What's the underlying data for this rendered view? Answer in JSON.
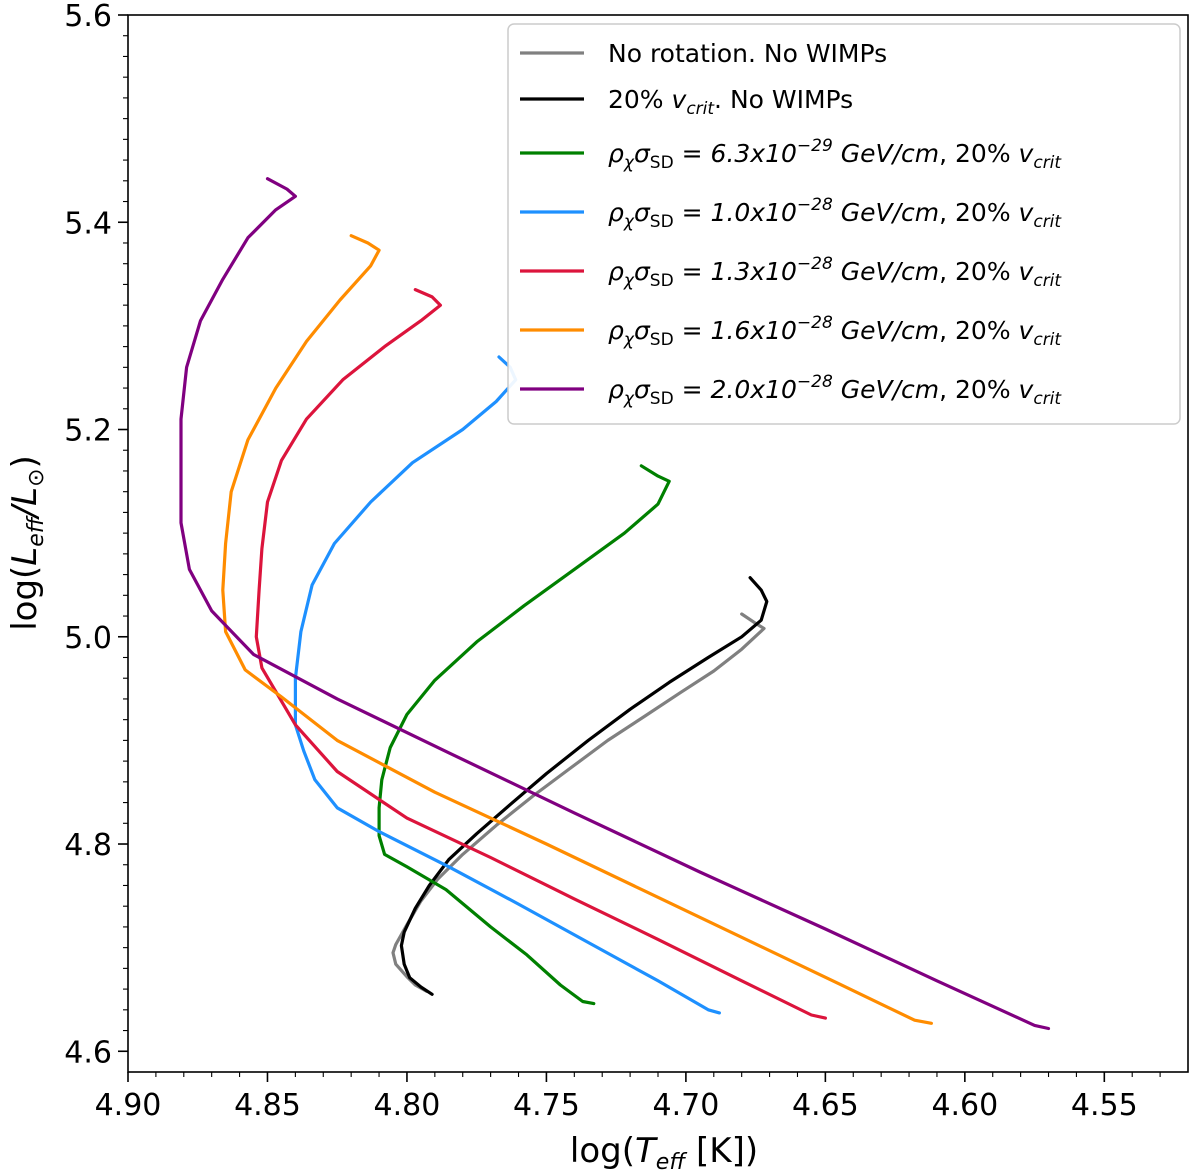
{
  "chart_data": {
    "type": "line",
    "xlabel_parts": {
      "pre": "log(",
      "sym": "T",
      "sub": "eff",
      "post": " [K])"
    },
    "ylabel_parts": {
      "pre": "log(",
      "sym1": "L",
      "sub1": "eff",
      "slash": "/",
      "sym2": "L",
      "sub2": "⊙",
      "post": ")"
    },
    "xlim": [
      4.9,
      4.52
    ],
    "ylim": [
      4.58,
      5.6
    ],
    "x_ticks": [
      {
        "value": 4.9,
        "label": "4.90"
      },
      {
        "value": 4.85,
        "label": "4.85"
      },
      {
        "value": 4.8,
        "label": "4.80"
      },
      {
        "value": 4.75,
        "label": "4.75"
      },
      {
        "value": 4.7,
        "label": "4.70"
      },
      {
        "value": 4.65,
        "label": "4.65"
      },
      {
        "value": 4.6,
        "label": "4.60"
      },
      {
        "value": 4.55,
        "label": "4.55"
      }
    ],
    "y_ticks": [
      {
        "value": 4.6,
        "label": "4.6"
      },
      {
        "value": 4.8,
        "label": "4.8"
      },
      {
        "value": 5.0,
        "label": "5.0"
      },
      {
        "value": 5.2,
        "label": "5.2"
      },
      {
        "value": 5.4,
        "label": "5.4"
      },
      {
        "value": 5.6,
        "label": "5.6"
      }
    ],
    "legend_position": "top-right",
    "series": [
      {
        "name": "No rotation. No WIMPs",
        "legend_parts": {
          "plain": "No rotation. No WIMPs"
        },
        "color": "#808080",
        "points": [
          [
            4.793,
            4.658
          ],
          [
            4.797,
            4.664
          ],
          [
            4.8,
            4.672
          ],
          [
            4.804,
            4.684
          ],
          [
            4.805,
            4.695
          ],
          [
            4.804,
            4.703
          ],
          [
            4.8,
            4.722
          ],
          [
            4.795,
            4.745
          ],
          [
            4.789,
            4.766
          ],
          [
            4.78,
            4.79
          ],
          [
            4.768,
            4.818
          ],
          [
            4.755,
            4.846
          ],
          [
            4.742,
            4.872
          ],
          [
            4.728,
            4.9
          ],
          [
            4.715,
            4.923
          ],
          [
            4.702,
            4.946
          ],
          [
            4.69,
            4.967
          ],
          [
            4.68,
            4.988
          ],
          [
            4.672,
            5.008
          ],
          [
            4.675,
            5.013
          ],
          [
            4.68,
            5.022
          ]
        ]
      },
      {
        "name": "20% v_crit. No WIMPs",
        "legend_parts": {
          "pre": "20% ",
          "sym": "v",
          "sub": "crit",
          "post": ". No WIMPs"
        },
        "color": "#000000",
        "points": [
          [
            4.791,
            4.655
          ],
          [
            4.795,
            4.662
          ],
          [
            4.799,
            4.671
          ],
          [
            4.801,
            4.684
          ],
          [
            4.802,
            4.702
          ],
          [
            4.801,
            4.715
          ],
          [
            4.797,
            4.738
          ],
          [
            4.792,
            4.76
          ],
          [
            4.785,
            4.785
          ],
          [
            4.775,
            4.81
          ],
          [
            4.763,
            4.838
          ],
          [
            4.75,
            4.868
          ],
          [
            4.735,
            4.9
          ],
          [
            4.72,
            4.93
          ],
          [
            4.706,
            4.956
          ],
          [
            4.692,
            4.98
          ],
          [
            4.68,
            5.0
          ],
          [
            4.673,
            5.016
          ],
          [
            4.671,
            5.034
          ],
          [
            4.673,
            5.045
          ],
          [
            4.677,
            5.057
          ]
        ]
      },
      {
        "name": "ρχσSD = 6.3x10^-29 GeV/cm, 20% v_crit",
        "legend_parts": {
          "rho": "ρ",
          "rho_sub": "χ",
          "sigma": "σ",
          "sigma_sub": "SD",
          "eq": " = ",
          "mant": "6.3x10",
          "exp": "−29",
          "unit": " GeV/cm",
          "sep": ", 20% ",
          "v": "v",
          "v_sub": "crit"
        },
        "color": "#008000",
        "points": [
          [
            4.733,
            4.646
          ],
          [
            4.737,
            4.648
          ],
          [
            4.745,
            4.664
          ],
          [
            4.757,
            4.693
          ],
          [
            4.77,
            4.72
          ],
          [
            4.786,
            4.756
          ],
          [
            4.8,
            4.778
          ],
          [
            4.808,
            4.79
          ],
          [
            4.81,
            4.808
          ],
          [
            4.81,
            4.835
          ],
          [
            4.809,
            4.862
          ],
          [
            4.806,
            4.893
          ],
          [
            4.8,
            4.925
          ],
          [
            4.79,
            4.958
          ],
          [
            4.775,
            4.995
          ],
          [
            4.758,
            5.03
          ],
          [
            4.74,
            5.065
          ],
          [
            4.722,
            5.1
          ],
          [
            4.71,
            5.128
          ],
          [
            4.706,
            5.15
          ],
          [
            4.71,
            5.155
          ],
          [
            4.716,
            5.165
          ]
        ]
      },
      {
        "name": "ρχσSD = 1.0x10^-28 GeV/cm, 20% v_crit",
        "legend_parts": {
          "rho": "ρ",
          "rho_sub": "χ",
          "sigma": "σ",
          "sigma_sub": "SD",
          "eq": " = ",
          "mant": "1.0x10",
          "exp": "−28",
          "unit": " GeV/cm",
          "sep": ", 20% ",
          "v": "v",
          "v_sub": "crit"
        },
        "color": "#1E90FF",
        "points": [
          [
            4.688,
            4.637
          ],
          [
            4.692,
            4.64
          ],
          [
            4.71,
            4.668
          ],
          [
            4.735,
            4.705
          ],
          [
            4.76,
            4.742
          ],
          [
            4.785,
            4.778
          ],
          [
            4.81,
            4.812
          ],
          [
            4.825,
            4.835
          ],
          [
            4.833,
            4.862
          ],
          [
            4.837,
            4.89
          ],
          [
            4.84,
            4.915
          ],
          [
            4.84,
            4.96
          ],
          [
            4.838,
            5.005
          ],
          [
            4.834,
            5.05
          ],
          [
            4.826,
            5.09
          ],
          [
            4.813,
            5.13
          ],
          [
            4.798,
            5.168
          ],
          [
            4.78,
            5.2
          ],
          [
            4.768,
            5.227
          ],
          [
            4.761,
            5.248
          ],
          [
            4.763,
            5.26
          ],
          [
            4.767,
            5.27
          ]
        ]
      },
      {
        "name": "ρχσSD = 1.3x10^-28 GeV/cm, 20% v_crit",
        "legend_parts": {
          "rho": "ρ",
          "rho_sub": "χ",
          "sigma": "σ",
          "sigma_sub": "SD",
          "eq": " = ",
          "mant": "1.3x10",
          "exp": "−28",
          "unit": " GeV/cm",
          "sep": ", 20% ",
          "v": "v",
          "v_sub": "crit"
        },
        "color": "#DC143C",
        "points": [
          [
            4.65,
            4.632
          ],
          [
            4.655,
            4.635
          ],
          [
            4.68,
            4.668
          ],
          [
            4.71,
            4.708
          ],
          [
            4.74,
            4.747
          ],
          [
            4.77,
            4.787
          ],
          [
            4.8,
            4.825
          ],
          [
            4.825,
            4.87
          ],
          [
            4.84,
            4.915
          ],
          [
            4.852,
            4.97
          ],
          [
            4.854,
            5.0
          ],
          [
            4.853,
            5.045
          ],
          [
            4.852,
            5.085
          ],
          [
            4.85,
            5.13
          ],
          [
            4.845,
            5.17
          ],
          [
            4.836,
            5.21
          ],
          [
            4.823,
            5.248
          ],
          [
            4.808,
            5.28
          ],
          [
            4.795,
            5.305
          ],
          [
            4.788,
            5.32
          ],
          [
            4.791,
            5.328
          ],
          [
            4.797,
            5.335
          ]
        ]
      },
      {
        "name": "ρχσSD = 1.6x10^-28 GeV/cm, 20% v_crit",
        "legend_parts": {
          "rho": "ρ",
          "rho_sub": "χ",
          "sigma": "σ",
          "sigma_sub": "SD",
          "eq": " = ",
          "mant": "1.6x10",
          "exp": "−28",
          "unit": " GeV/cm",
          "sep": ", 20% ",
          "v": "v",
          "v_sub": "crit"
        },
        "color": "#FF8C00",
        "points": [
          [
            4.612,
            4.627
          ],
          [
            4.618,
            4.63
          ],
          [
            4.645,
            4.665
          ],
          [
            4.68,
            4.71
          ],
          [
            4.715,
            4.755
          ],
          [
            4.75,
            4.8
          ],
          [
            4.79,
            4.85
          ],
          [
            4.825,
            4.9
          ],
          [
            4.845,
            4.942
          ],
          [
            4.858,
            4.968
          ],
          [
            4.865,
            5.005
          ],
          [
            4.866,
            5.045
          ],
          [
            4.865,
            5.09
          ],
          [
            4.863,
            5.14
          ],
          [
            4.857,
            5.19
          ],
          [
            4.847,
            5.24
          ],
          [
            4.836,
            5.285
          ],
          [
            4.824,
            5.325
          ],
          [
            4.813,
            5.358
          ],
          [
            4.81,
            5.373
          ],
          [
            4.814,
            5.38
          ],
          [
            4.82,
            5.387
          ]
        ]
      },
      {
        "name": "ρχσSD = 2.0x10^-28 GeV/cm, 20% v_crit",
        "legend_parts": {
          "rho": "ρ",
          "rho_sub": "χ",
          "sigma": "σ",
          "sigma_sub": "SD",
          "eq": " = ",
          "mant": "2.0x10",
          "exp": "−28",
          "unit": " GeV/cm",
          "sep": ", 20% ",
          "v": "v",
          "v_sub": "crit"
        },
        "color": "#800080",
        "points": [
          [
            4.57,
            4.622
          ],
          [
            4.575,
            4.625
          ],
          [
            4.61,
            4.668
          ],
          [
            4.65,
            4.718
          ],
          [
            4.695,
            4.773
          ],
          [
            4.74,
            4.83
          ],
          [
            4.785,
            4.888
          ],
          [
            4.825,
            4.94
          ],
          [
            4.855,
            4.983
          ],
          [
            4.87,
            5.025
          ],
          [
            4.878,
            5.065
          ],
          [
            4.881,
            5.11
          ],
          [
            4.881,
            5.16
          ],
          [
            4.881,
            5.21
          ],
          [
            4.879,
            5.26
          ],
          [
            4.874,
            5.305
          ],
          [
            4.866,
            5.345
          ],
          [
            4.857,
            5.385
          ],
          [
            4.847,
            5.412
          ],
          [
            4.84,
            5.425
          ],
          [
            4.843,
            5.432
          ],
          [
            4.85,
            5.442
          ]
        ]
      }
    ]
  }
}
